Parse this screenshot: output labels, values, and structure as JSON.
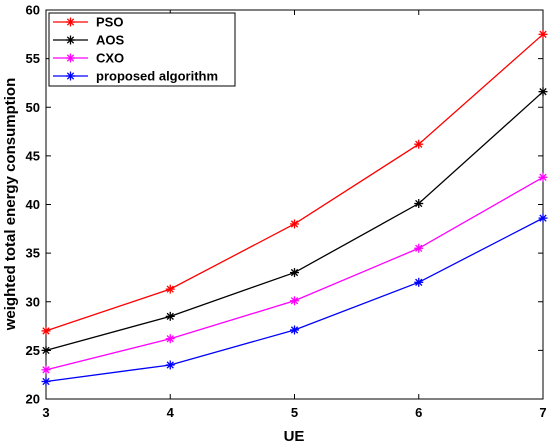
{
  "chart_data": {
    "type": "line",
    "xlabel": "UE",
    "ylabel": "weighted total energy consumption",
    "x": [
      3,
      4,
      5,
      6,
      7
    ],
    "xlim": [
      3,
      7
    ],
    "ylim": [
      20,
      60
    ],
    "xticks": [
      "3",
      "4",
      "5",
      "6",
      "7"
    ],
    "yticks": [
      "20",
      "25",
      "30",
      "35",
      "40",
      "45",
      "50",
      "55",
      "60"
    ],
    "grid": false,
    "legend_position": "top-left",
    "marker": "asterisk",
    "series": [
      {
        "name": "PSO",
        "color": "#ff0000",
        "values": [
          27.0,
          31.3,
          38.0,
          46.2,
          57.5
        ]
      },
      {
        "name": "AOS",
        "color": "#000000",
        "values": [
          25.0,
          28.5,
          33.0,
          40.1,
          51.6
        ]
      },
      {
        "name": "CXO",
        "color": "#ff00ff",
        "values": [
          23.0,
          26.2,
          30.1,
          35.5,
          42.8
        ]
      },
      {
        "name": "proposed algorithm",
        "color": "#0000ff",
        "values": [
          21.8,
          23.5,
          27.1,
          32.0,
          38.6
        ]
      }
    ]
  }
}
